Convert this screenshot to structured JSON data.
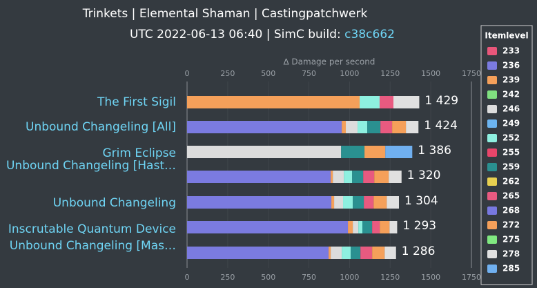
{
  "chart_data": {
    "type": "stacked-bar-horizontal",
    "title": "Trinkets | Elemental Shaman | Castingpatchwerk",
    "subtitle": "UTC 2022-06-13 06:40 | SimC build: ",
    "subtitle_link": "c38c662",
    "x_label": "∆ Damage per second",
    "legend_title": "Itemlevel",
    "categories": [
      "The First Sigil",
      "Unbound Changeling [All]",
      "Grim Eclipse",
      "Unbound Changeling [Hast…",
      "Unbound Changeling",
      "Inscrutable Quantum Device",
      "Unbound Changeling [Mas…"
    ],
    "totals": [
      1429,
      1424,
      1386,
      1320,
      1304,
      1293,
      1286
    ],
    "total_labels": [
      "1 429",
      "1 424",
      "1 386",
      "1 320",
      "1 304",
      "1 293",
      "1 286"
    ],
    "xlim": [
      0,
      1750
    ],
    "xticks": [
      0,
      250,
      500,
      750,
      1000,
      1250,
      1500,
      1750
    ],
    "series": [
      {
        "name": "233",
        "color": "#e8567a",
        "values": [
          null,
          null,
          null,
          null,
          null,
          null,
          null
        ]
      },
      {
        "name": "236",
        "color": "#7b7be0",
        "values": [
          null,
          952,
          null,
          884,
          888,
          990,
          871
        ]
      },
      {
        "name": "239",
        "color": "#f5a05a",
        "values": [
          1062,
          25,
          null,
          13,
          17,
          30,
          13
        ]
      },
      {
        "name": "242",
        "color": "#80e080",
        "values": [
          null,
          null,
          null,
          null,
          null,
          null,
          null
        ]
      },
      {
        "name": "246",
        "color": "#dcdcdc",
        "values": [
          null,
          72,
          948,
          68,
          55,
          34,
          68
        ]
      },
      {
        "name": "249",
        "color": "#6cb4f0",
        "values": [
          null,
          null,
          null,
          null,
          null,
          null,
          null
        ]
      },
      {
        "name": "252",
        "color": "#8ef0e0",
        "values": [
          123,
          60,
          null,
          51,
          60,
          25,
          55
        ]
      },
      {
        "name": "255",
        "color": "#e8456a",
        "values": [
          null,
          null,
          null,
          null,
          null,
          null,
          null
        ]
      },
      {
        "name": "259",
        "color": "#2a9090",
        "values": [
          null,
          81,
          144,
          68,
          68,
          60,
          60
        ]
      },
      {
        "name": "262",
        "color": "#e8d050",
        "values": [
          null,
          null,
          null,
          null,
          null,
          null,
          null
        ]
      },
      {
        "name": "265",
        "color": "#e85a80",
        "values": [
          85,
          72,
          null,
          68,
          60,
          47,
          72
        ]
      },
      {
        "name": "268",
        "color": "#7878e0",
        "values": [
          null,
          null,
          null,
          null,
          null,
          null,
          null
        ]
      },
      {
        "name": "272",
        "color": "#f5a05a",
        "values": [
          null,
          85,
          128,
          89,
          81,
          60,
          77
        ]
      },
      {
        "name": "275",
        "color": "#80e880",
        "values": [
          null,
          null,
          null,
          null,
          null,
          null,
          null
        ]
      },
      {
        "name": "278",
        "color": "#e0e0e0",
        "values": [
          159,
          77,
          null,
          79,
          75,
          47,
          70
        ]
      },
      {
        "name": "285",
        "color": "#70b0f0",
        "values": [
          null,
          null,
          166,
          null,
          null,
          null,
          null
        ]
      }
    ]
  }
}
